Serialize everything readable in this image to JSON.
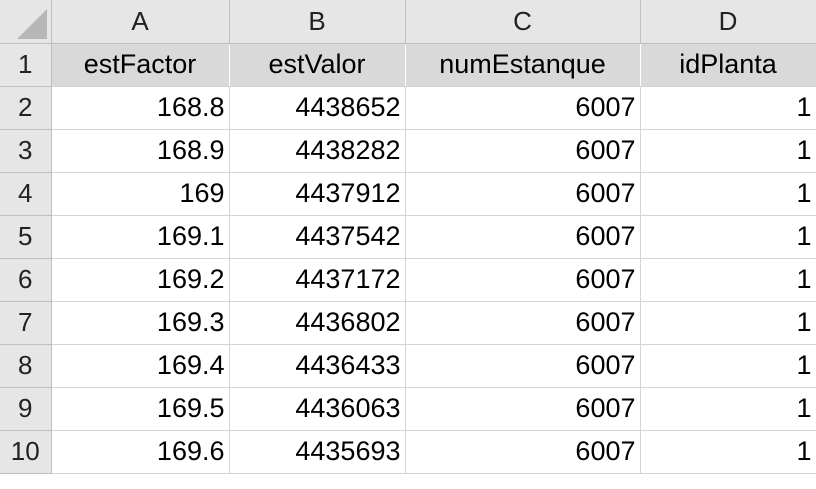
{
  "columns": [
    "A",
    "B",
    "C",
    "D"
  ],
  "header_row": {
    "row_number": "1",
    "cells": [
      "estFactor",
      "estValor",
      "numEstanque",
      "idPlanta"
    ]
  },
  "rows": [
    {
      "row_number": "2",
      "cells": [
        "168.8",
        "4438652",
        "6007",
        "1"
      ]
    },
    {
      "row_number": "3",
      "cells": [
        "168.9",
        "4438282",
        "6007",
        "1"
      ]
    },
    {
      "row_number": "4",
      "cells": [
        "169",
        "4437912",
        "6007",
        "1"
      ]
    },
    {
      "row_number": "5",
      "cells": [
        "169.1",
        "4437542",
        "6007",
        "1"
      ]
    },
    {
      "row_number": "6",
      "cells": [
        "169.2",
        "4437172",
        "6007",
        "1"
      ]
    },
    {
      "row_number": "7",
      "cells": [
        "169.3",
        "4436802",
        "6007",
        "1"
      ]
    },
    {
      "row_number": "8",
      "cells": [
        "169.4",
        "4436433",
        "6007",
        "1"
      ]
    },
    {
      "row_number": "9",
      "cells": [
        "169.5",
        "4436063",
        "6007",
        "1"
      ]
    },
    {
      "row_number": "10",
      "cells": [
        "169.6",
        "4435693",
        "6007",
        "1"
      ]
    }
  ]
}
